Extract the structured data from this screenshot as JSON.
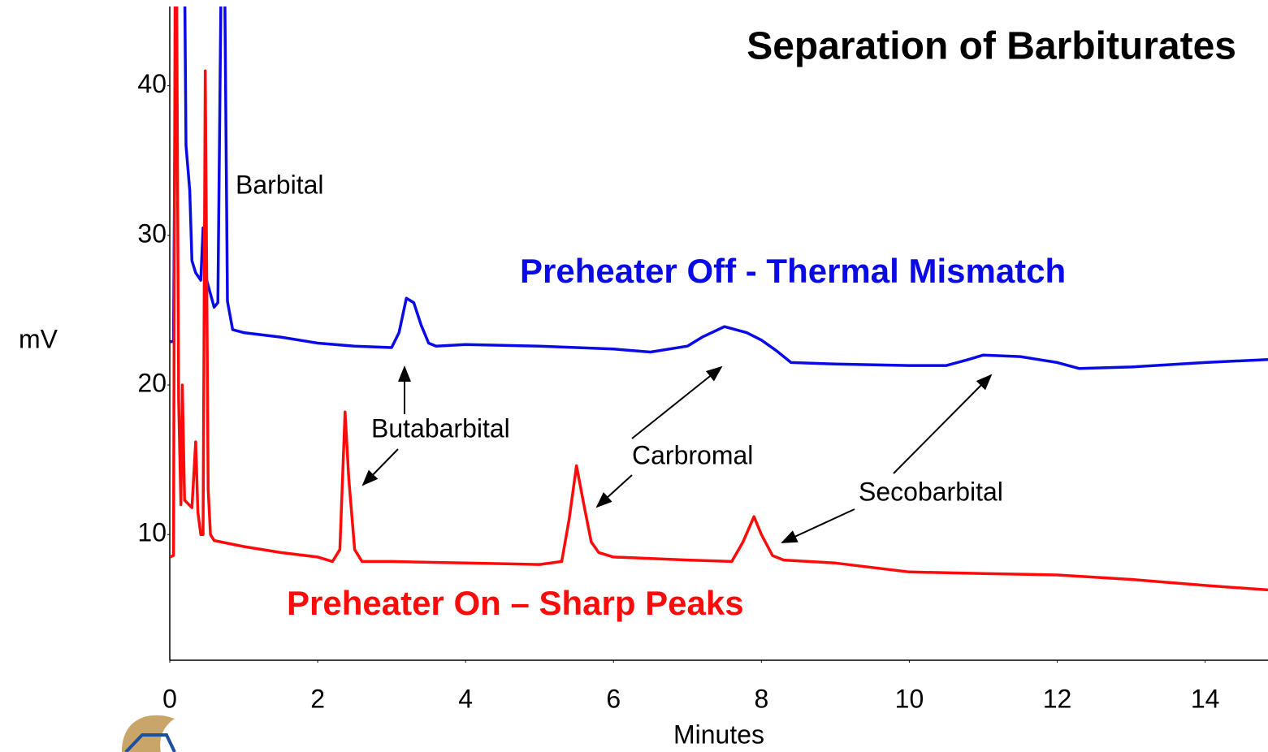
{
  "chart_data": {
    "type": "line",
    "title": "Separation of Barbiturates",
    "x_label": "Minutes",
    "y_label": "mV",
    "xlim": [
      0,
      14.85
    ],
    "ylim": [
      1.6,
      45.3
    ],
    "xticks": [
      0,
      2,
      4,
      6,
      8,
      10,
      12,
      14
    ],
    "yticks": [
      10,
      20,
      30,
      40
    ],
    "grid": false,
    "series": [
      {
        "name": "Preheater Off - Thermal Mismatch",
        "color": "#0a0ae6",
        "x": [
          0,
          0.05,
          0.1,
          0.18,
          0.22,
          0.27,
          0.3,
          0.35,
          0.42,
          0.45,
          0.5,
          0.6,
          0.65,
          0.72,
          0.78,
          0.85,
          1.0,
          1.5,
          2.0,
          2.5,
          3.0,
          3.1,
          3.2,
          3.3,
          3.4,
          3.5,
          3.6,
          4,
          5,
          6,
          6.5,
          7,
          7.2,
          7.5,
          7.8,
          8.0,
          8.2,
          8.4,
          9,
          10,
          10.5,
          10.8,
          11.0,
          11.5,
          12.0,
          12.3,
          13,
          14,
          14.85
        ],
        "values": [
          22.9,
          22.9,
          60,
          60,
          36,
          33,
          28.3,
          27.5,
          27.0,
          30.5,
          27,
          25.2,
          25.5,
          60,
          25.6,
          23.7,
          23.5,
          23.2,
          22.8,
          22.6,
          22.5,
          23.5,
          25.8,
          25.5,
          24.0,
          22.8,
          22.6,
          22.7,
          22.6,
          22.4,
          22.2,
          22.6,
          23.2,
          23.9,
          23.5,
          23.0,
          22.3,
          21.5,
          21.4,
          21.3,
          21.3,
          21.7,
          22.0,
          21.9,
          21.5,
          21.1,
          21.2,
          21.5,
          21.7
        ]
      },
      {
        "name": "Preheater On – Sharp Peaks",
        "color": "#ff0a0a",
        "x": [
          0,
          0.05,
          0.08,
          0.12,
          0.15,
          0.17,
          0.2,
          0.3,
          0.35,
          0.38,
          0.42,
          0.45,
          0.48,
          0.52,
          0.55,
          0.6,
          1.0,
          1.5,
          2.0,
          2.2,
          2.3,
          2.37,
          2.42,
          2.5,
          2.6,
          3,
          4,
          5,
          5.3,
          5.4,
          5.5,
          5.6,
          5.7,
          5.8,
          6,
          7,
          7.6,
          7.75,
          7.9,
          8.0,
          8.15,
          8.3,
          9,
          10,
          11,
          12,
          13,
          14,
          14.85
        ],
        "values": [
          8.5,
          8.6,
          60,
          19,
          12,
          20,
          12.3,
          11.8,
          16.2,
          11.5,
          10,
          10,
          41,
          13,
          10,
          9.6,
          9.2,
          8.8,
          8.5,
          8.2,
          9,
          18.2,
          13.8,
          9.0,
          8.2,
          8.2,
          8.1,
          8.0,
          8.2,
          11,
          14.6,
          12,
          9.5,
          8.8,
          8.5,
          8.3,
          8.2,
          9.5,
          11.2,
          10,
          8.6,
          8.3,
          8.1,
          7.5,
          7.4,
          7.3,
          7.0,
          6.6,
          6.3
        ]
      }
    ],
    "annotations": [
      {
        "text": "Barbital"
      },
      {
        "text": "Butabarbital"
      },
      {
        "text": "Carbromal"
      },
      {
        "text": "Secobarbital"
      }
    ]
  }
}
